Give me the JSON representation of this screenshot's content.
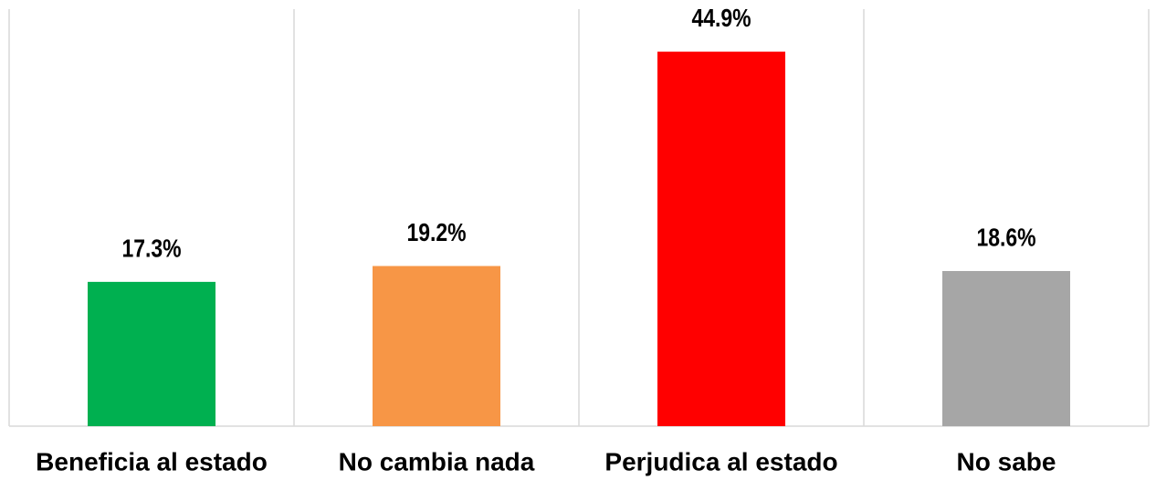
{
  "chart_data": {
    "type": "bar",
    "categories": [
      "Beneficia al estado",
      "No cambia nada",
      "Perjudica al estado",
      "No sabe"
    ],
    "values": [
      17.3,
      19.2,
      44.9,
      18.6
    ],
    "value_labels": [
      "17.3%",
      "19.2%",
      "44.9%",
      "18.6%"
    ],
    "colors": [
      "#00b050",
      "#f79646",
      "#ff0000",
      "#a6a6a6"
    ],
    "ylim": [
      0,
      50
    ]
  }
}
